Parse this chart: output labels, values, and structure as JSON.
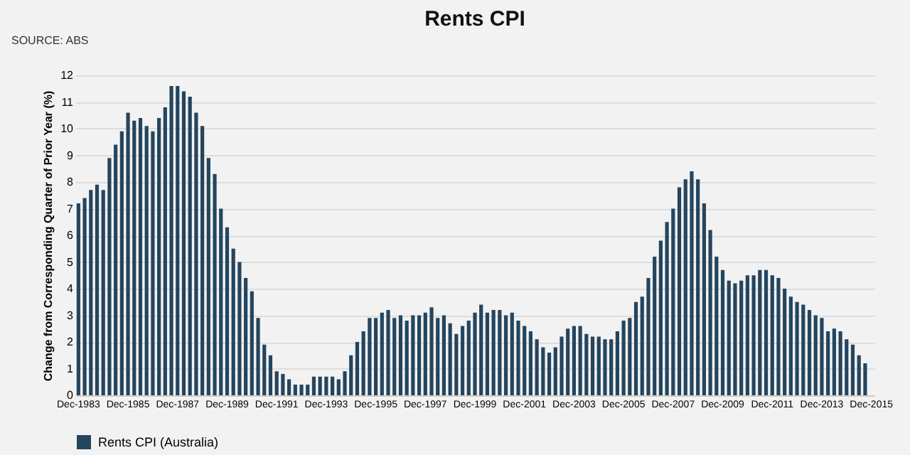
{
  "chart_data": {
    "type": "bar",
    "title": "Rents CPI",
    "ylabel": "Change from Corresponding Quarter of Prior Year (%)",
    "annotations": [
      "SOURCE: ABS"
    ],
    "categories": [
      "Dec-1983",
      null,
      null,
      null,
      null,
      null,
      null,
      null,
      "Dec-1985",
      null,
      null,
      null,
      null,
      null,
      null,
      null,
      "Dec-1987",
      null,
      null,
      null,
      null,
      null,
      null,
      null,
      "Dec-1989",
      null,
      null,
      null,
      null,
      null,
      null,
      null,
      "Dec-1991",
      null,
      null,
      null,
      null,
      null,
      null,
      null,
      "Dec-1993",
      null,
      null,
      null,
      null,
      null,
      null,
      null,
      "Dec-1995",
      null,
      null,
      null,
      null,
      null,
      null,
      null,
      "Dec-1997",
      null,
      null,
      null,
      null,
      null,
      null,
      null,
      "Dec-1999",
      null,
      null,
      null,
      null,
      null,
      null,
      null,
      "Dec-2001",
      null,
      null,
      null,
      null,
      null,
      null,
      null,
      "Dec-2003",
      null,
      null,
      null,
      null,
      null,
      null,
      null,
      "Dec-2005",
      null,
      null,
      null,
      null,
      null,
      null,
      null,
      "Dec-2007",
      null,
      null,
      null,
      null,
      null,
      null,
      null,
      "Dec-2009",
      null,
      null,
      null,
      null,
      null,
      null,
      null,
      "Dec-2011",
      null,
      null,
      null,
      null,
      null,
      null,
      null,
      "Dec-2013",
      null,
      null,
      null,
      null,
      null,
      null,
      null,
      "Dec-2015"
    ],
    "series": [
      {
        "name": "Rents CPI (Australia)",
        "color": "#24455e",
        "values": [
          7.2,
          7.4,
          7.7,
          7.9,
          7.7,
          8.9,
          9.4,
          9.9,
          10.6,
          10.3,
          10.4,
          10.1,
          9.9,
          10.4,
          10.8,
          11.6,
          11.6,
          11.4,
          11.2,
          10.6,
          10.1,
          8.9,
          8.3,
          7.0,
          6.3,
          5.5,
          5.0,
          4.4,
          3.9,
          2.9,
          1.9,
          1.5,
          0.9,
          0.8,
          0.6,
          0.4,
          0.4,
          0.4,
          0.7,
          0.7,
          0.7,
          0.7,
          0.6,
          0.9,
          1.5,
          2.0,
          2.4,
          2.9,
          2.9,
          3.1,
          3.2,
          2.9,
          3.0,
          2.8,
          3.0,
          3.0,
          3.1,
          3.3,
          2.9,
          3.0,
          2.7,
          2.3,
          2.6,
          2.8,
          3.1,
          3.4,
          3.1,
          3.2,
          3.2,
          3.0,
          3.1,
          2.8,
          2.6,
          2.4,
          2.1,
          1.8,
          1.6,
          1.8,
          2.2,
          2.5,
          2.6,
          2.6,
          2.3,
          2.2,
          2.2,
          2.1,
          2.1,
          2.4,
          2.8,
          2.9,
          3.5,
          3.7,
          4.4,
          5.2,
          5.8,
          6.5,
          7.0,
          7.8,
          8.1,
          8.4,
          8.1,
          7.2,
          6.2,
          5.2,
          4.7,
          4.3,
          4.2,
          4.3,
          4.5,
          4.5,
          4.7,
          4.7,
          4.5,
          4.4,
          4.0,
          3.7,
          3.5,
          3.4,
          3.2,
          3.0,
          2.9,
          2.4,
          2.5,
          2.4,
          2.1,
          1.9,
          1.5,
          1.2,
          null
        ]
      }
    ],
    "ylim": [
      0,
      12
    ],
    "yticks": [
      0,
      1,
      2,
      3,
      4,
      5,
      6,
      7,
      8,
      9,
      10,
      11,
      12
    ],
    "grid": "y",
    "legend": "bottom"
  }
}
